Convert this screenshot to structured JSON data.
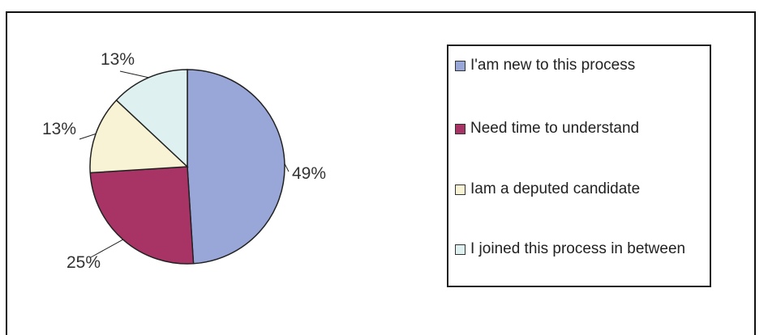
{
  "chart_data": {
    "type": "pie",
    "categories": [
      "I'am new to this process",
      "Need time to understand",
      "Iam a deputed candidate",
      "I joined this process in between"
    ],
    "values": [
      49,
      25,
      13,
      13
    ],
    "data_labels": [
      "49%",
      "25%",
      "13%",
      "13%"
    ],
    "colors": [
      "#99a6d8",
      "#a83466",
      "#f7f3d4",
      "#dff0f1"
    ],
    "legend": {
      "placement": "right"
    }
  }
}
